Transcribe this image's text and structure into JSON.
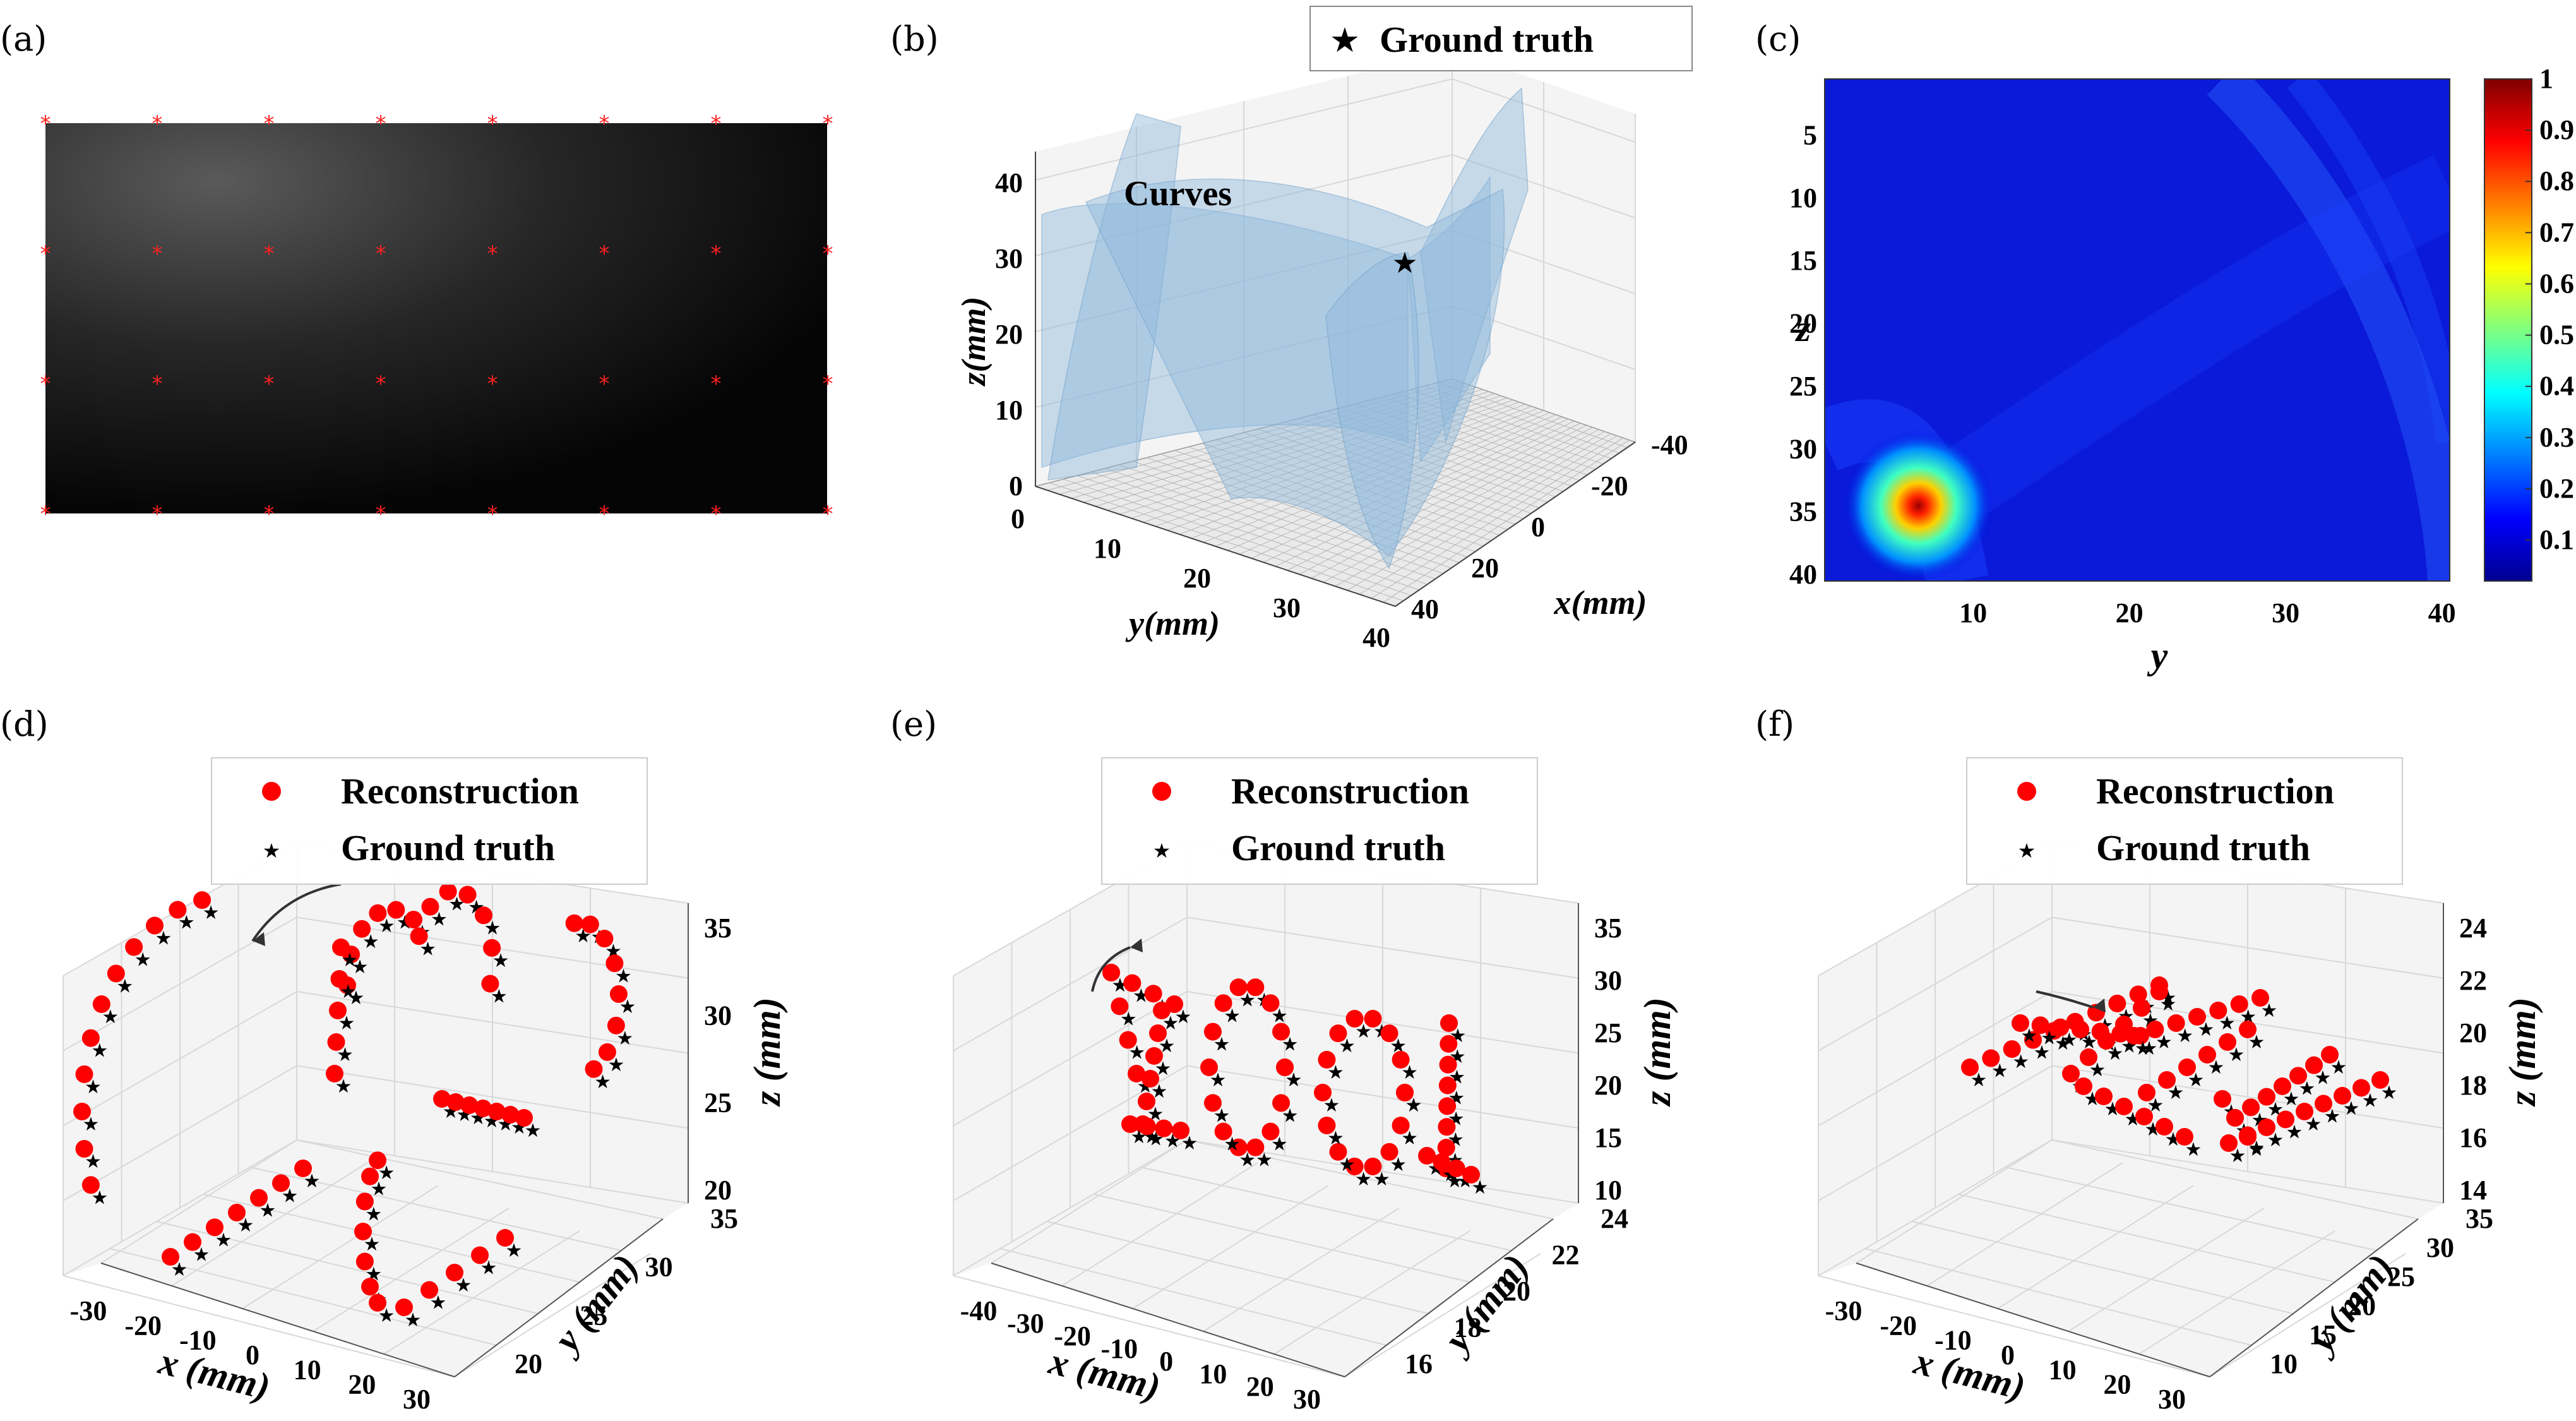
{
  "panels": {
    "a": {
      "label": "(a)"
    },
    "b": {
      "label": "(b)"
    },
    "c": {
      "label": "(c)"
    },
    "d": {
      "label": "(d)"
    },
    "e": {
      "label": "(e)"
    },
    "f": {
      "label": "(f)"
    }
  },
  "chart_data": [
    {
      "id": "a",
      "type": "other",
      "description_marks": "dark gradient image with a 8x4 grid of red star markers",
      "marker_color": "#ff2020",
      "rows": 4,
      "cols": 8
    },
    {
      "id": "b",
      "type": "surface3d",
      "title": "",
      "xlabel": "y(mm)",
      "ylabel": "x(mm)",
      "zlabel": "z(mm)",
      "x_ticks": [
        "0",
        "10",
        "20",
        "30",
        "40"
      ],
      "y_ticks": [
        "-40",
        "-20",
        "0",
        "20",
        "40"
      ],
      "z_ticks": [
        "0",
        "10",
        "20",
        "30",
        "40"
      ],
      "legend": {
        "entries": [
          "Ground truth"
        ],
        "placement": "top"
      },
      "annotation": "Curves",
      "surface_color": "#8fb8dc"
    },
    {
      "id": "c",
      "type": "heatmap",
      "xlabel": "y",
      "ylabel": "z",
      "x_ticks": [
        "10",
        "20",
        "30",
        "40"
      ],
      "y_ticks": [
        "5",
        "10",
        "15",
        "20",
        "25",
        "30",
        "35",
        "40"
      ],
      "colorbar_ticks": [
        "1",
        "0.9",
        "0.8",
        "0.7",
        "0.6",
        "0.5",
        "0.4",
        "0.3",
        "0.2",
        "0.1"
      ],
      "peak": {
        "y": 6.5,
        "z": 34.5,
        "value": 1
      },
      "range": [
        0,
        1
      ]
    },
    {
      "id": "d",
      "type": "scatter3d",
      "xlabel": "x (mm)",
      "ylabel": "y (mm)",
      "zlabel": "z (mm)",
      "x_ticks": [
        "-30",
        "-20",
        "-10",
        "0",
        "10",
        "20",
        "30"
      ],
      "y_ticks": [
        "20",
        "25",
        "30",
        "35"
      ],
      "z_ticks": [
        "20",
        "25",
        "30",
        "35"
      ],
      "legend": {
        "entries": [
          "Reconstruction",
          "Ground truth"
        ],
        "placement": "top"
      },
      "series": [
        {
          "name": "Reconstruction",
          "color": "#ff0000",
          "marker": "circle"
        },
        {
          "name": "Ground truth",
          "color": "#000000",
          "marker": "star"
        }
      ]
    },
    {
      "id": "e",
      "type": "scatter3d",
      "xlabel": "x (mm)",
      "ylabel": "y (mm)",
      "zlabel": "z (mm)",
      "x_ticks": [
        "-40",
        "-30",
        "-20",
        "-10",
        "0",
        "10",
        "20",
        "30"
      ],
      "y_ticks": [
        "16",
        "18",
        "20",
        "22",
        "24"
      ],
      "z_ticks": [
        "10",
        "15",
        "20",
        "25",
        "30",
        "35"
      ],
      "legend": {
        "entries": [
          "Reconstruction",
          "Ground truth"
        ],
        "placement": "top"
      },
      "series": [
        {
          "name": "Reconstruction",
          "color": "#ff0000",
          "marker": "circle"
        },
        {
          "name": "Ground truth",
          "color": "#000000",
          "marker": "star"
        }
      ]
    },
    {
      "id": "f",
      "type": "scatter3d",
      "xlabel": "x (mm)",
      "ylabel": "y (mm)",
      "zlabel": "z (mm)",
      "x_ticks": [
        "-30",
        "-20",
        "-10",
        "0",
        "10",
        "20",
        "30"
      ],
      "y_ticks": [
        "10",
        "15",
        "20",
        "25",
        "30",
        "35"
      ],
      "z_ticks": [
        "14",
        "16",
        "18",
        "20",
        "22",
        "24"
      ],
      "legend": {
        "entries": [
          "Reconstruction",
          "Ground truth"
        ],
        "placement": "top"
      },
      "series": [
        {
          "name": "Reconstruction",
          "color": "#ff0000",
          "marker": "circle"
        },
        {
          "name": "Ground truth",
          "color": "#000000",
          "marker": "star"
        }
      ]
    }
  ]
}
